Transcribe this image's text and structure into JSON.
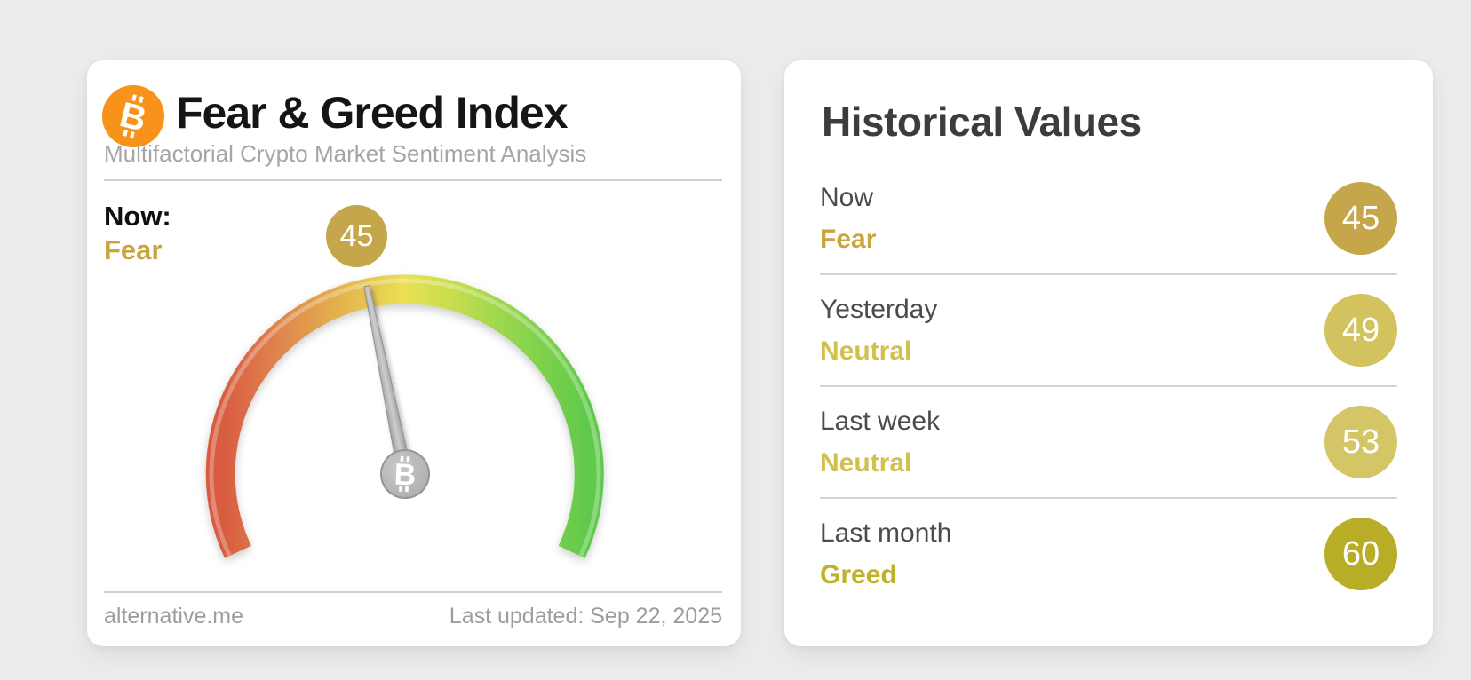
{
  "colors": {
    "page_bg": "#ececec",
    "card_bg": "#ffffff",
    "bitcoin_orange": "#f7931a",
    "gold_accent": "#c9a53c",
    "divider": "#cfcfcf"
  },
  "icons": {
    "bitcoin_glyph": "B"
  },
  "gauge_card": {
    "title": "Fear & Greed Index",
    "subtitle": "Multifactorial Crypto Market Sentiment Analysis",
    "now_label": "Now:",
    "now_sentiment": "Fear",
    "now_sentiment_color": "#c9a53c",
    "now_value": "45",
    "now_badge_color": "#c6a64b",
    "footer_source": "alternative.me",
    "footer_updated": "Last updated: Sep 22, 2025"
  },
  "historical_card": {
    "title": "Historical Values",
    "rows": [
      {
        "label": "Now",
        "sentiment": "Fear",
        "sentiment_color": "#c9a53c",
        "value": "45",
        "badge_color": "#c6a64b"
      },
      {
        "label": "Yesterday",
        "sentiment": "Neutral",
        "sentiment_color": "#d2bf4e",
        "value": "49",
        "badge_color": "#d2c35e"
      },
      {
        "label": "Last week",
        "sentiment": "Neutral",
        "sentiment_color": "#d2bf4e",
        "value": "53",
        "badge_color": "#d4c666"
      },
      {
        "label": "Last month",
        "sentiment": "Greed",
        "sentiment_color": "#bdb228",
        "value": "60",
        "badge_color": "#b8ad26"
      }
    ]
  },
  "chart_data": {
    "type": "gauge",
    "title": "Fear & Greed Index",
    "min": 0,
    "max": 100,
    "value": 45,
    "classification": "Fear",
    "sweep_degrees": 230,
    "needle_color": "#a8a8a8",
    "color_stops": [
      "#d85b40",
      "#e0854f",
      "#e5b44e",
      "#eae054",
      "#c3dd4f",
      "#8bd44d",
      "#5fc94b"
    ],
    "historical": [
      {
        "period": "Now",
        "value": 45,
        "classification": "Fear"
      },
      {
        "period": "Yesterday",
        "value": 49,
        "classification": "Neutral"
      },
      {
        "period": "Last week",
        "value": 53,
        "classification": "Neutral"
      },
      {
        "period": "Last month",
        "value": 60,
        "classification": "Greed"
      }
    ]
  }
}
